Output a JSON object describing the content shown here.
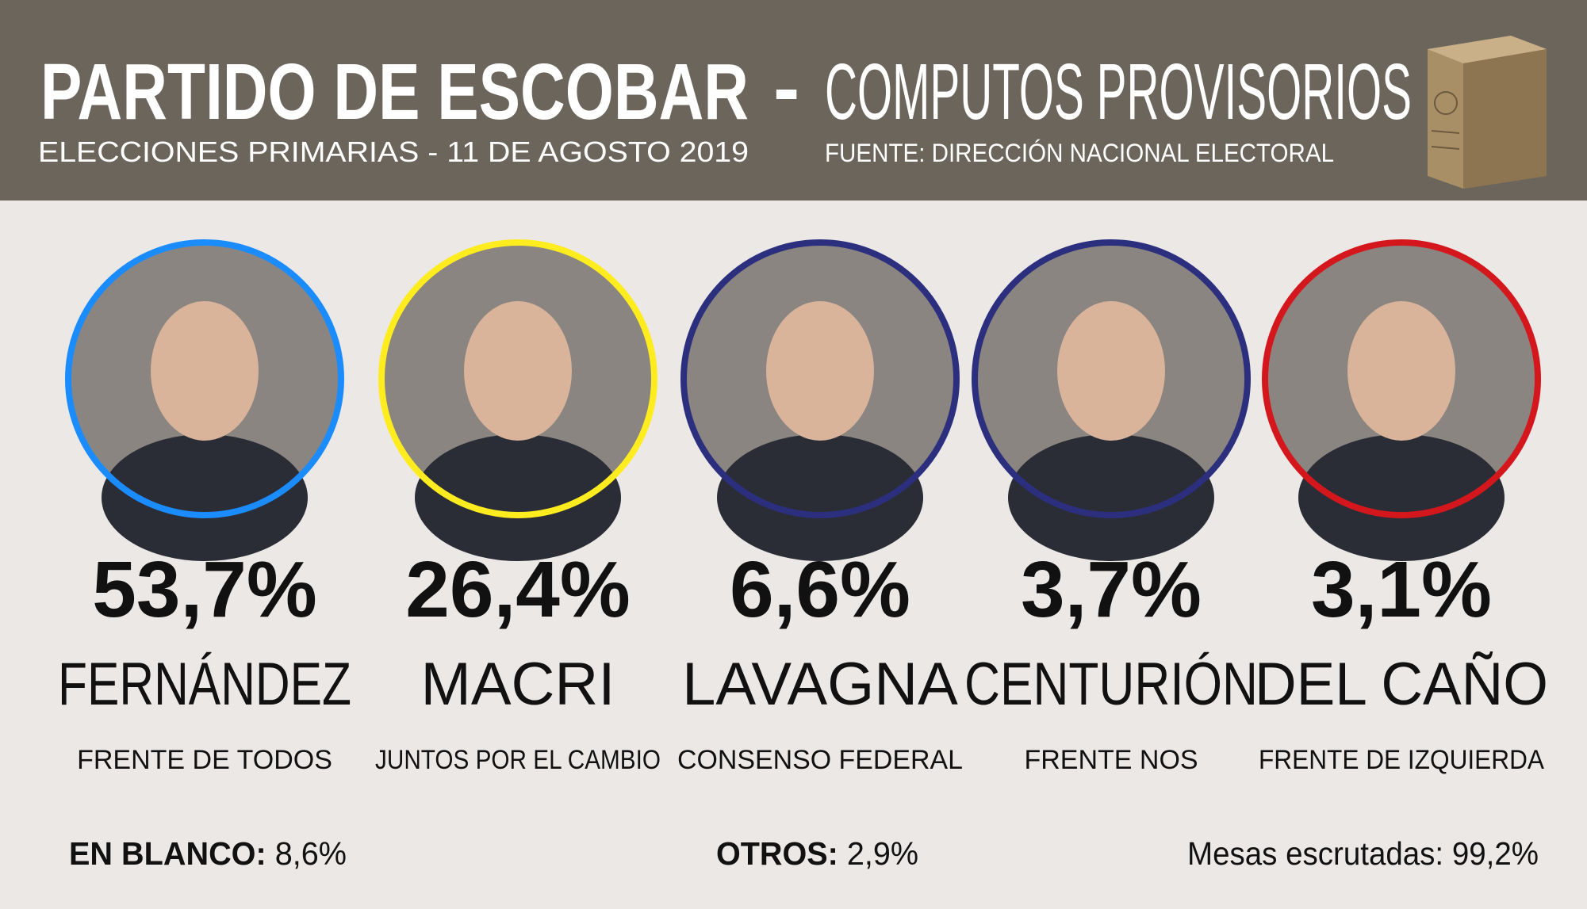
{
  "header": {
    "title_bold": "PARTIDO DE ESCOBAR",
    "separator": "-",
    "title_light": "COMPUTOS PROVISORIOS",
    "subtitle": "ELECCIONES PRIMARIAS - 11 DE AGOSTO 2019",
    "source": "FUENTE: DIRECCIÓN NACIONAL ELECTORAL"
  },
  "candidates": [
    {
      "percent": "53,7%",
      "name": "FERNÁNDEZ",
      "party": "FRENTE DE TODOS",
      "color": "#1a8cff"
    },
    {
      "percent": "26,4%",
      "name": "MACRI",
      "party": "JUNTOS POR EL CAMBIO",
      "color": "#ffec1f"
    },
    {
      "percent": "6,6%",
      "name": "LAVAGNA",
      "party": "CONSENSO FEDERAL",
      "color": "#2c2f7e"
    },
    {
      "percent": "3,7%",
      "name": "CENTURIÓN",
      "party": "FRENTE NOS",
      "color": "#2c2f7e"
    },
    {
      "percent": "3,1%",
      "name": "DEL CAÑO",
      "party": "FRENTE DE IZQUIERDA",
      "color": "#d4171c"
    }
  ],
  "footer": {
    "blank_label": "EN BLANCO:",
    "blank_value": "8,6%",
    "others_label": "OTROS:",
    "others_value": "2,9%",
    "tables": "Mesas escrutadas: 99,2%"
  }
}
